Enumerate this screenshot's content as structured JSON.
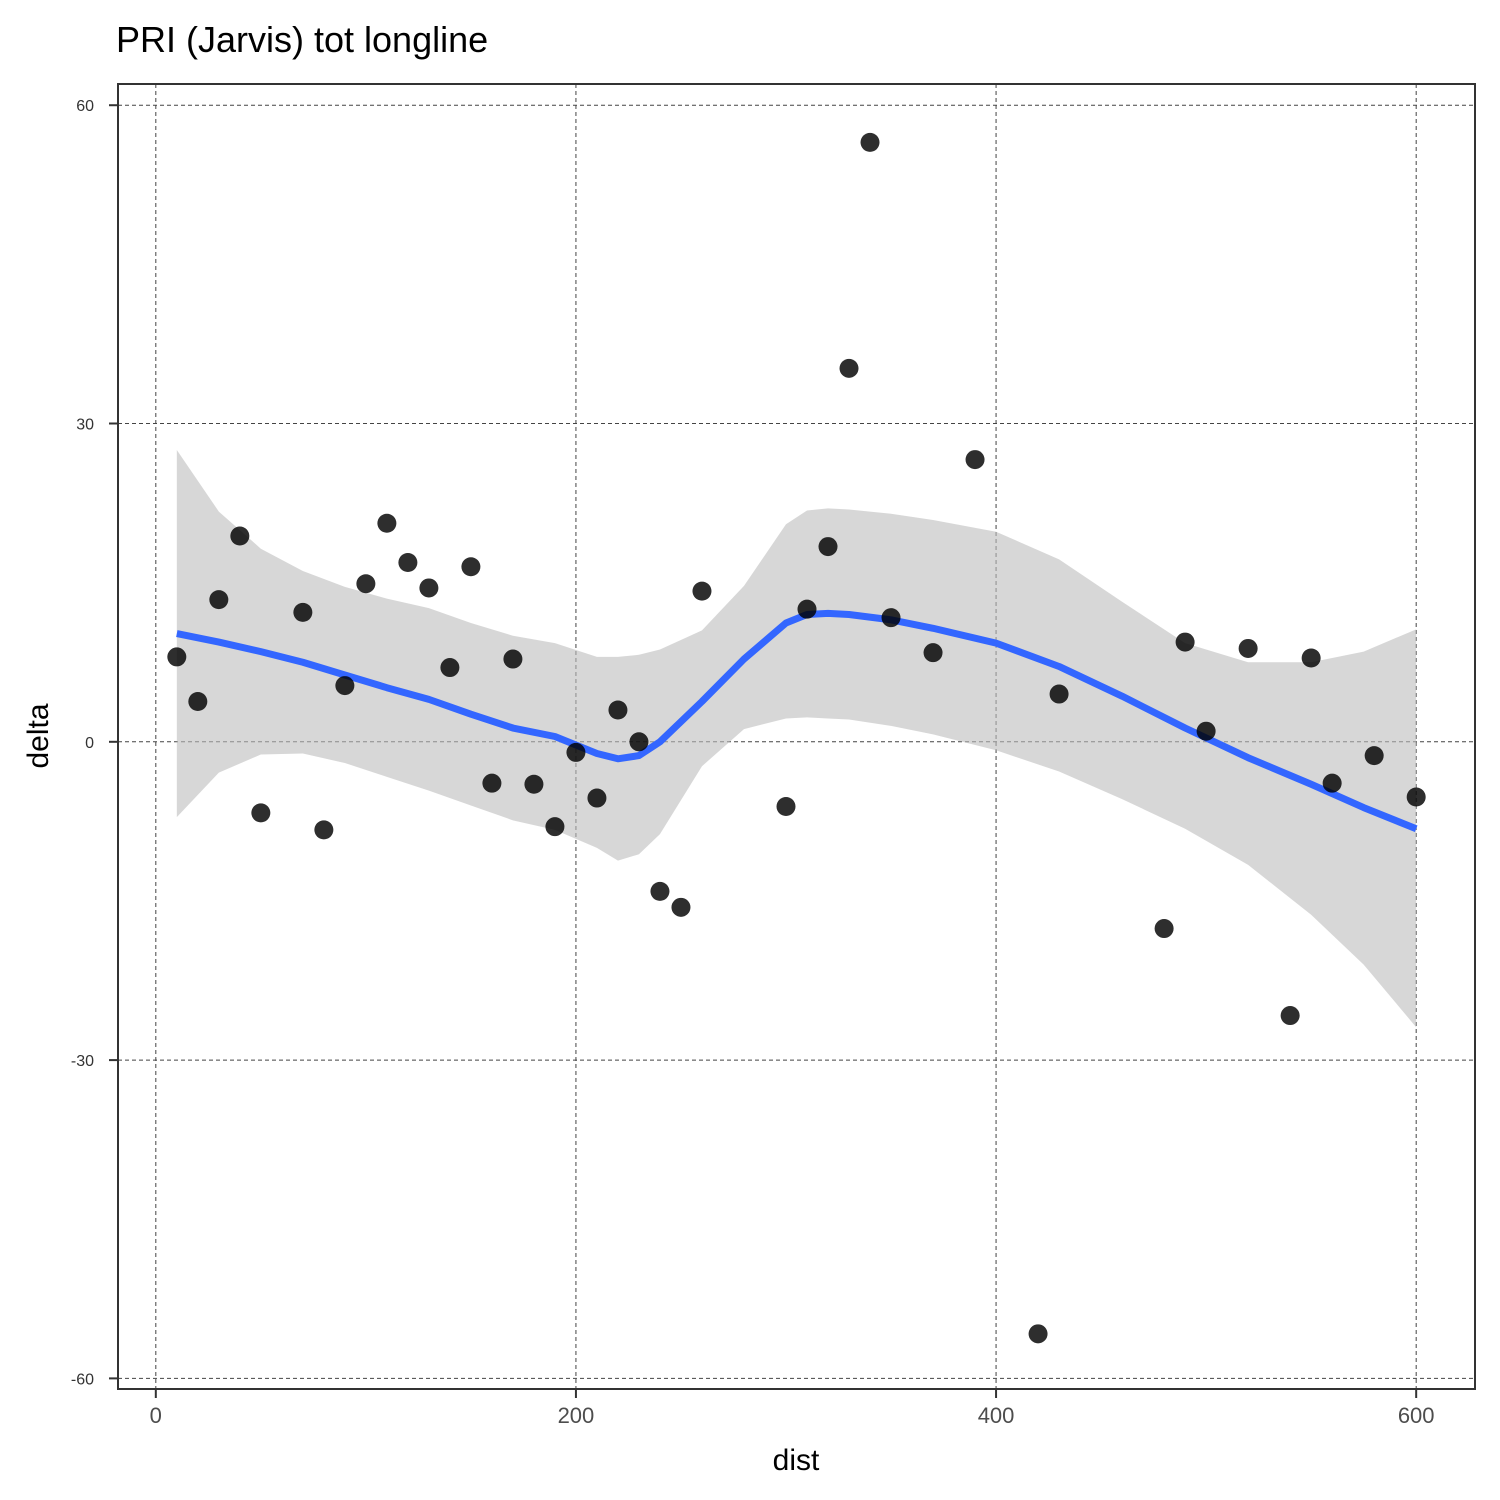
{
  "chart_data": {
    "type": "scatter",
    "title": "PRI (Jarvis) tot longline",
    "xlabel": "dist",
    "ylabel": "delta",
    "xlim": [
      -18,
      628
    ],
    "ylim": [
      -61,
      62
    ],
    "xticks": [
      0,
      200,
      400,
      600
    ],
    "yticks": [
      60,
      30,
      0,
      -30,
      -60
    ],
    "xtick_labels": [
      "0",
      "200",
      "400",
      "600"
    ],
    "ytick_labels": [
      "60",
      "30",
      "0",
      "-30",
      "-60"
    ],
    "grid": true,
    "legend": "none",
    "colors": {
      "points": "#000000",
      "smooth_line": "#3366FF",
      "confidence_band": "#BDBDBD"
    },
    "points": [
      {
        "x": 10,
        "y": 8.0
      },
      {
        "x": 20,
        "y": 3.8
      },
      {
        "x": 30,
        "y": 13.4
      },
      {
        "x": 40,
        "y": 19.4
      },
      {
        "x": 50,
        "y": -6.7
      },
      {
        "x": 70,
        "y": 12.2
      },
      {
        "x": 80,
        "y": -8.3
      },
      {
        "x": 90,
        "y": 5.3
      },
      {
        "x": 100,
        "y": 14.9
      },
      {
        "x": 110,
        "y": 20.6
      },
      {
        "x": 120,
        "y": 16.9
      },
      {
        "x": 130,
        "y": 14.5
      },
      {
        "x": 140,
        "y": 7.0
      },
      {
        "x": 150,
        "y": 16.5
      },
      {
        "x": 160,
        "y": -3.9
      },
      {
        "x": 170,
        "y": 7.8
      },
      {
        "x": 180,
        "y": -4.0
      },
      {
        "x": 190,
        "y": -8.0
      },
      {
        "x": 200,
        "y": -1.0
      },
      {
        "x": 210,
        "y": -5.3
      },
      {
        "x": 220,
        "y": 3.0
      },
      {
        "x": 230,
        "y": 0.0
      },
      {
        "x": 240,
        "y": -14.1
      },
      {
        "x": 250,
        "y": -15.6
      },
      {
        "x": 260,
        "y": 14.2
      },
      {
        "x": 300,
        "y": -6.1
      },
      {
        "x": 310,
        "y": 12.5
      },
      {
        "x": 320,
        "y": 18.4
      },
      {
        "x": 330,
        "y": 35.2
      },
      {
        "x": 340,
        "y": 56.5
      },
      {
        "x": 350,
        "y": 11.7
      },
      {
        "x": 370,
        "y": 8.4
      },
      {
        "x": 390,
        "y": 26.6
      },
      {
        "x": 420,
        "y": -55.8
      },
      {
        "x": 430,
        "y": 4.5
      },
      {
        "x": 480,
        "y": -17.6
      },
      {
        "x": 490,
        "y": 9.4
      },
      {
        "x": 500,
        "y": 1.0
      },
      {
        "x": 520,
        "y": 8.8
      },
      {
        "x": 540,
        "y": -25.8
      },
      {
        "x": 550,
        "y": 7.9
      },
      {
        "x": 560,
        "y": -3.9
      },
      {
        "x": 580,
        "y": -1.3
      },
      {
        "x": 600,
        "y": -5.2
      }
    ],
    "smooth": {
      "x": [
        10,
        30,
        50,
        70,
        90,
        110,
        130,
        150,
        170,
        190,
        210,
        220,
        230,
        240,
        260,
        280,
        300,
        310,
        320,
        330,
        350,
        370,
        400,
        430,
        460,
        490,
        520,
        550,
        575,
        600
      ],
      "y": [
        10.2,
        9.4,
        8.5,
        7.5,
        6.3,
        5.1,
        4.0,
        2.6,
        1.3,
        0.5,
        -1.1,
        -1.6,
        -1.3,
        0.0,
        3.8,
        7.8,
        11.2,
        12.0,
        12.1,
        12.0,
        11.5,
        10.7,
        9.3,
        7.1,
        4.3,
        1.3,
        -1.5,
        -4.0,
        -6.2,
        -8.2
      ],
      "lower": [
        -7.1,
        -2.9,
        -1.2,
        -1.1,
        -2.0,
        -3.3,
        -4.6,
        -6.0,
        -7.4,
        -8.3,
        -10.0,
        -11.2,
        -10.6,
        -8.7,
        -2.3,
        1.2,
        2.2,
        2.3,
        2.2,
        2.1,
        1.5,
        0.7,
        -0.8,
        -2.8,
        -5.4,
        -8.2,
        -11.6,
        -16.3,
        -21.0,
        -26.9
      ],
      "upper": [
        27.5,
        21.7,
        18.2,
        16.1,
        14.6,
        13.5,
        12.6,
        11.2,
        10.0,
        9.3,
        8.0,
        8.0,
        8.2,
        8.7,
        10.5,
        14.7,
        20.5,
        21.8,
        22.0,
        21.9,
        21.5,
        20.9,
        19.8,
        17.2,
        13.2,
        9.3,
        7.5,
        7.5,
        8.5,
        10.6
      ]
    }
  }
}
